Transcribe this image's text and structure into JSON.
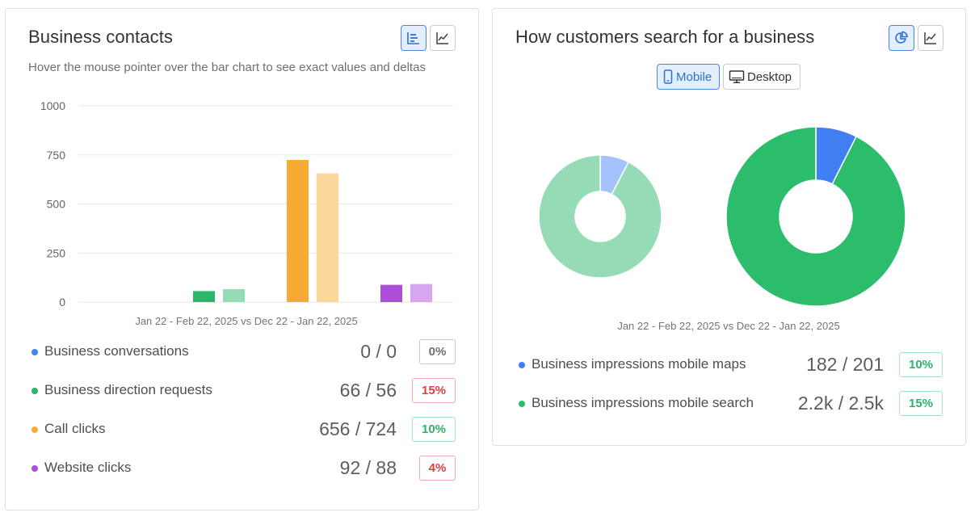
{
  "contacts": {
    "title": "Business contacts",
    "subtitle": "Hover the mouse pointer over the bar chart to see exact values and deltas",
    "period": "Jan 22 - Feb 22, 2025 vs Dec 22 - Jan 22, 2025",
    "metrics": [
      {
        "label": "Business conversations",
        "value": "0 / 0",
        "delta": "0%",
        "trend": "neutral",
        "color": "#4285f4"
      },
      {
        "label": "Business direction requests",
        "value": "66 / 56",
        "delta": "15%",
        "trend": "down",
        "color": "#2bb66b"
      },
      {
        "label": "Call clicks",
        "value": "656 / 724",
        "delta": "10%",
        "trend": "up",
        "color": "#f6ab34"
      },
      {
        "label": "Website clicks",
        "value": "92 / 88",
        "delta": "4%",
        "trend": "down",
        "color": "#ab4fdb"
      }
    ]
  },
  "search": {
    "title": "How customers search for a business",
    "toggle_mobile": "Mobile",
    "toggle_desktop": "Desktop",
    "period": "Jan 22 - Feb 22, 2025 vs Dec 22 - Jan 22, 2025",
    "metrics": [
      {
        "label": "Business impressions mobile maps",
        "value": "182 / 201",
        "delta": "10%",
        "trend": "up",
        "color": "#3f7ff2"
      },
      {
        "label": "Business impressions mobile search",
        "value": "2.2k / 2.5k",
        "delta": "15%",
        "trend": "up",
        "color": "#2bbd6b"
      }
    ]
  },
  "chart_data": [
    {
      "type": "bar",
      "categories": [
        "Business conversations",
        "Business direction requests",
        "Call clicks",
        "Website clicks"
      ],
      "series": [
        {
          "values": [
            0,
            56,
            724,
            88
          ],
          "colors": [
            "#4285f4",
            "#2bb66b",
            "#f6ab34",
            "#ab4fdb"
          ]
        },
        {
          "values": [
            0,
            66,
            656,
            92
          ],
          "colors": [
            "#a8c7fa",
            "#95dcb6",
            "#fbd79b",
            "#d8a5f0"
          ]
        }
      ],
      "yticks": [
        "1000",
        "750",
        "500",
        "250",
        "0"
      ],
      "ylim": [
        0,
        1000
      ],
      "grid": true,
      "xlabel": "Jan 22 - Feb 22, 2025 vs Dec 22 - Jan 22, 2025"
    },
    {
      "type": "pie",
      "slices": [
        {
          "label": "Business impressions mobile maps",
          "value": 182,
          "color": "#a4c2fb"
        },
        {
          "label": "Business impressions mobile search",
          "value": 2200,
          "color": "#95dcb6"
        }
      ]
    },
    {
      "type": "pie",
      "slices": [
        {
          "label": "Business impressions mobile maps",
          "value": 201,
          "color": "#3f7ff2"
        },
        {
          "label": "Business impressions mobile search",
          "value": 2500,
          "color": "#2bbd6b"
        }
      ]
    }
  ]
}
